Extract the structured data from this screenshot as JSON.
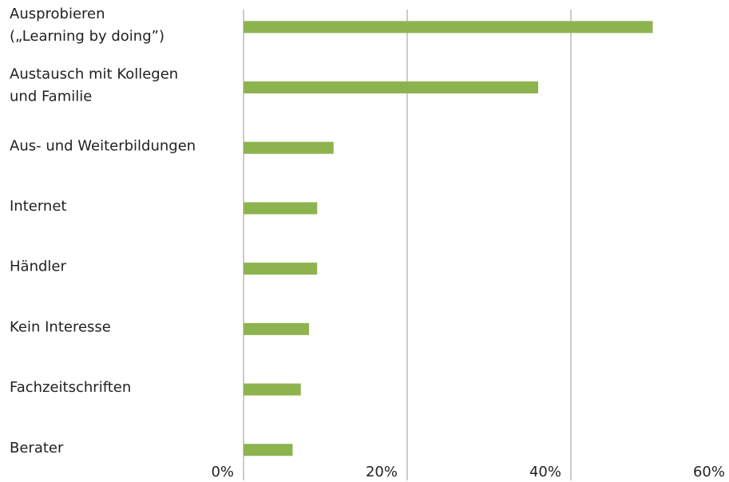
{
  "chart_data": {
    "type": "hbar",
    "categories": [
      [
        "Ausprobieren",
        "(„Learning by doing”)"
      ],
      [
        "Austausch mit Kollegen",
        "und Familie"
      ],
      [
        "Aus- und Weiterbildungen"
      ],
      [
        "Internet"
      ],
      [
        "Händler"
      ],
      [
        "Kein Interesse"
      ],
      [
        "Fachzeitschriften"
      ],
      [
        "Berater"
      ]
    ],
    "values": [
      50,
      36,
      11,
      9,
      9,
      8,
      7,
      6
    ],
    "color": "#8db34f",
    "xlim": [
      0,
      60
    ],
    "xticks": [
      {
        "value": 0,
        "label": "0%"
      },
      {
        "value": 20,
        "label": "20%"
      },
      {
        "value": 40,
        "label": "40%"
      },
      {
        "value": 60,
        "label": "60%"
      }
    ],
    "grid": true
  }
}
